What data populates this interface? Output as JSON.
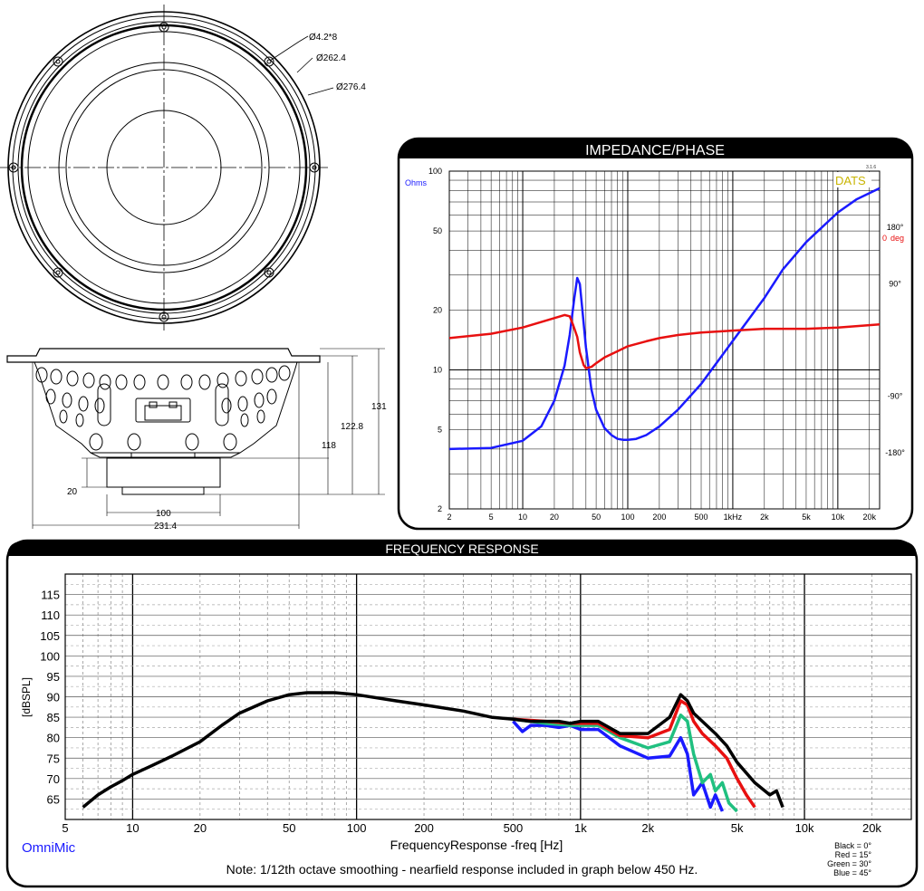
{
  "drawing": {
    "dims": {
      "hole": "Ø4.2*8",
      "bolt_circle": "Ø262.4",
      "outer": "Ø276.4"
    },
    "side_dims": {
      "total_height": "131",
      "frame_height": "122.8",
      "depth": "118",
      "magnet_height": "20",
      "magnet_dia": "100",
      "frame_dia": "231.4"
    }
  },
  "chart_data": [
    {
      "type": "line",
      "title": "IMPEDANCE/PHASE",
      "brand": "DATS",
      "version": "3.1.6",
      "left_unit": "Ohms",
      "right_unit": "deg",
      "xscale": "log",
      "xlim": [
        2,
        25000
      ],
      "ylim": [
        2,
        100
      ],
      "yscale": "log",
      "x_ticks": [
        2,
        5,
        10,
        20,
        50,
        100,
        200,
        500,
        1000,
        2000,
        5000,
        10000,
        20000
      ],
      "x_tick_labels": [
        "2",
        "5",
        "10",
        "20",
        "50",
        "100",
        "200",
        "500",
        "1kHz",
        "2k",
        "5k",
        "10k",
        "20k"
      ],
      "y_ticks": [
        2,
        5,
        10,
        20,
        50,
        100
      ],
      "y_tick_labels": [
        "2",
        "5",
        "10",
        "20",
        "50",
        "100"
      ],
      "phase_ticks": [
        180,
        90,
        0,
        -90,
        -180
      ],
      "phase_tick_labels": [
        "180°",
        "90°",
        "0",
        "-90°",
        "-180°"
      ],
      "phase_lim": [
        -270,
        270
      ],
      "series": [
        {
          "name": "Ohms",
          "axis": "left",
          "color": "#1a1aff",
          "x": [
            2,
            5,
            10,
            15,
            20,
            25,
            28,
            31,
            33,
            35,
            37,
            40,
            45,
            50,
            60,
            70,
            80,
            90,
            100,
            120,
            150,
            200,
            300,
            500,
            1000,
            2000,
            3000,
            5000,
            10000,
            15000,
            25000
          ],
          "y": [
            4,
            4.05,
            4.4,
            5.2,
            7,
            10.5,
            15,
            23,
            29,
            27,
            20,
            13,
            8,
            6.3,
            5.1,
            4.7,
            4.5,
            4.45,
            4.45,
            4.5,
            4.7,
            5.2,
            6.3,
            8.5,
            14,
            23,
            32,
            44,
            62,
            72,
            82
          ]
        },
        {
          "name": "deg",
          "axis": "right",
          "color": "#e81010",
          "x": [
            2,
            5,
            10,
            20,
            25,
            28,
            30,
            33,
            35,
            38,
            40,
            45,
            50,
            60,
            80,
            100,
            150,
            200,
            300,
            500,
            1000,
            2000,
            5000,
            10000,
            25000
          ],
          "y": [
            3,
            10,
            20,
            35,
            40,
            38,
            25,
            5,
            -20,
            -40,
            -45,
            -43,
            -37,
            -28,
            -18,
            -10,
            -2,
            3,
            8,
            12,
            15,
            18,
            18,
            20,
            25
          ]
        }
      ]
    },
    {
      "type": "line",
      "title": "FREQUENCY RESPONSE",
      "xlabel": "FrequencyResponse -freq [Hz]",
      "ylabel": "[dBSPL]",
      "xscale": "log",
      "xlim": [
        5,
        30000
      ],
      "ylim": [
        60,
        120
      ],
      "x_ticks": [
        5,
        10,
        20,
        50,
        100,
        200,
        500,
        1000,
        2000,
        5000,
        10000,
        20000
      ],
      "x_tick_labels": [
        "5",
        "10",
        "20",
        "50",
        "100",
        "200",
        "500",
        "1k",
        "2k",
        "5k",
        "10k",
        "20k"
      ],
      "y_ticks": [
        65,
        70,
        75,
        80,
        85,
        90,
        95,
        100,
        105,
        110,
        115
      ],
      "y_tick_labels": [
        "65",
        "70",
        "75",
        "80",
        "85",
        "90",
        "95",
        "100",
        "105",
        "110",
        "115"
      ],
      "grid": true,
      "brand": "OmniMic",
      "note": "Note: 1/12th octave smoothing - nearfield response included in graph below 450 Hz.",
      "legend": [
        "Black = 0°",
        "Red = 15°",
        "Green = 30°",
        "Blue = 45°"
      ],
      "series": [
        {
          "name": "Black = 0°",
          "color": "#000000",
          "x": [
            6,
            7,
            8,
            9,
            10,
            12,
            15,
            20,
            25,
            30,
            40,
            50,
            60,
            70,
            80,
            100,
            150,
            200,
            300,
            400,
            500,
            600,
            700,
            800,
            900,
            1000,
            1200,
            1500,
            2000,
            2500,
            2800,
            3000,
            3200,
            3500,
            4000,
            4500,
            5000,
            6000,
            7000,
            7500,
            8000
          ],
          "y": [
            63,
            66,
            68,
            69.5,
            71,
            73,
            75.5,
            79,
            83,
            86,
            89,
            90.5,
            91,
            91,
            91,
            90.5,
            89,
            88,
            86.5,
            85,
            84.5,
            84,
            84,
            84,
            83.5,
            84,
            84,
            81,
            81,
            85,
            90.5,
            89,
            86,
            84,
            81,
            78,
            74,
            69,
            66,
            67,
            63
          ]
        },
        {
          "name": "Red = 15°",
          "color": "#e81010",
          "x": [
            500,
            700,
            900,
            1000,
            1200,
            1500,
            2000,
            2500,
            2800,
            3000,
            3200,
            3500,
            4000,
            4500,
            5000,
            5500,
            6000
          ],
          "y": [
            84.5,
            84,
            83.5,
            83.5,
            83.5,
            80.5,
            80,
            82,
            89,
            88,
            84,
            81,
            78,
            75,
            70,
            66,
            63
          ]
        },
        {
          "name": "Green = 30°",
          "color": "#20c080",
          "x": [
            500,
            700,
            900,
            1000,
            1200,
            1500,
            2000,
            2500,
            2800,
            3000,
            3200,
            3500,
            3800,
            4000,
            4300,
            4600,
            5000
          ],
          "y": [
            84.5,
            83.5,
            83,
            83,
            83,
            80,
            77.5,
            79,
            85.5,
            84,
            76,
            69,
            71,
            67,
            69,
            64,
            62
          ]
        },
        {
          "name": "Blue = 45°",
          "color": "#1a1aff",
          "x": [
            500,
            550,
            600,
            700,
            800,
            900,
            1000,
            1200,
            1500,
            2000,
            2500,
            2800,
            3000,
            3200,
            3500,
            3800,
            4000,
            4300
          ],
          "y": [
            84,
            81.5,
            83,
            83,
            82.5,
            83,
            82,
            82,
            78,
            75,
            75.5,
            80,
            76,
            66,
            69,
            63,
            66,
            62
          ]
        }
      ]
    }
  ]
}
